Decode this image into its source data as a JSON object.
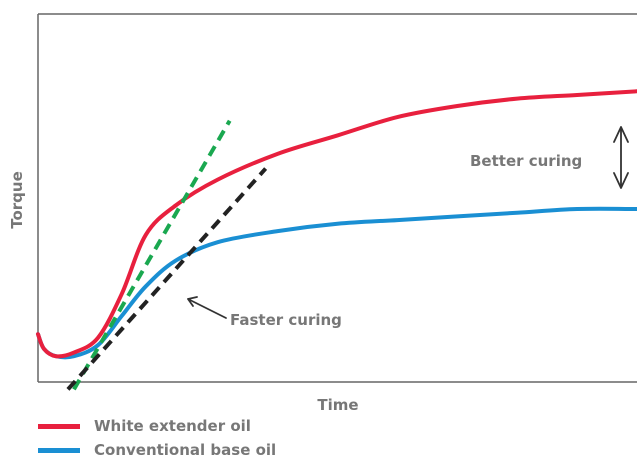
{
  "chart_data": {
    "type": "line",
    "xlabel": "Time",
    "ylabel": "Torque",
    "grid": false,
    "legend_position": "bottom-left",
    "series": [
      {
        "name": "White extender oil",
        "color": "#e8203e",
        "x": [
          0,
          1,
          3,
          6,
          10,
          14,
          18,
          23,
          30,
          40,
          50,
          60,
          70,
          80,
          90,
          100
        ],
        "y": [
          13,
          9,
          7,
          8,
          12,
          24,
          40,
          48,
          55,
          62,
          67,
          72,
          75,
          77,
          78,
          79
        ]
      },
      {
        "name": "Conventional base oil",
        "color": "#1a8fd3",
        "x": [
          0,
          1,
          3,
          6,
          10,
          14,
          18,
          23,
          30,
          40,
          50,
          60,
          70,
          80,
          90,
          100
        ],
        "y": [
          13,
          9,
          7,
          7,
          10,
          18,
          26,
          33,
          38,
          41,
          43,
          44,
          45,
          46,
          47,
          47
        ]
      }
    ],
    "tangents": [
      {
        "color": "#1aa850",
        "from": [
          6,
          -2
        ],
        "to": [
          32,
          71
        ]
      },
      {
        "color": "#222222",
        "from": [
          5,
          -2
        ],
        "to": [
          38,
          58
        ]
      }
    ],
    "annotations": {
      "faster_curing": "Faster curing",
      "better_curing": "Better curing"
    }
  }
}
